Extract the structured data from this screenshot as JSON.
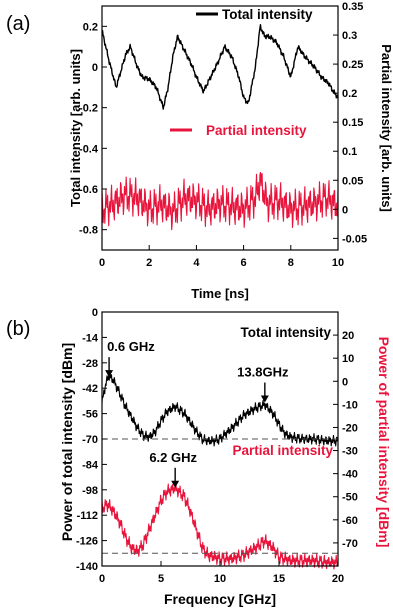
{
  "chart_data": [
    {
      "panel": "(a)",
      "type": "line",
      "xlabel": "Time [ns]",
      "ylabel": "Total intensity [arb. units]",
      "ylabel_right": "Partial intensity [arb. units]",
      "xlim": [
        0,
        10
      ],
      "ylim": [
        -0.9,
        0.3
      ],
      "ylim_right": [
        -0.07,
        0.35
      ],
      "xticks": [
        "0",
        "2",
        "4",
        "6",
        "8",
        "10"
      ],
      "yticks": [
        "0.2",
        "0",
        "-0.2",
        "-0.4",
        "-0.6",
        "-0.8"
      ],
      "yticks_right": [
        "0.35",
        "0.3",
        "0.25",
        "0.2",
        "0.15",
        "0.1",
        "0.05",
        "0",
        "-0.05"
      ],
      "legend": [
        {
          "label": "Total intensity",
          "color": "#000000",
          "placement": "top-right"
        },
        {
          "label": "Partial intensity",
          "color": "#e8143c",
          "placement": "middle-right"
        }
      ],
      "series": [
        {
          "axis": "left",
          "color": "#000000",
          "x": [
            0,
            0.3,
            0.6,
            0.8,
            1.0,
            1.2,
            1.5,
            1.7,
            2.0,
            2.3,
            2.6,
            2.8,
            3.0,
            3.2,
            3.5,
            3.8,
            4.0,
            4.3,
            4.6,
            4.9,
            5.2,
            5.5,
            5.8,
            6.0,
            6.2,
            6.5,
            6.7,
            6.9,
            7.1,
            7.4,
            7.7,
            8.0,
            8.3,
            8.6,
            9.0,
            9.3,
            9.6,
            9.8,
            10.0
          ],
          "values": [
            0.18,
            0.03,
            -0.1,
            -0.02,
            0.06,
            0.1,
            0.0,
            -0.05,
            -0.06,
            -0.1,
            -0.2,
            -0.1,
            0.05,
            0.15,
            0.08,
            0.01,
            -0.05,
            -0.12,
            -0.05,
            0.02,
            0.1,
            0.05,
            -0.05,
            -0.15,
            -0.18,
            0.0,
            0.2,
            0.15,
            0.15,
            0.12,
            0.05,
            -0.05,
            0.1,
            0.05,
            0.0,
            -0.05,
            -0.08,
            -0.12,
            -0.15
          ]
        },
        {
          "axis": "right",
          "color": "#e8143c",
          "x": [
            0,
            0.5,
            1.0,
            1.5,
            2.0,
            2.5,
            3.0,
            3.5,
            4.0,
            4.5,
            5.0,
            5.5,
            6.0,
            6.5,
            6.7,
            7.0,
            7.5,
            8.0,
            8.5,
            9.0,
            9.5,
            10.0
          ],
          "values": [
            0.0,
            0.01,
            0.025,
            0.02,
            0.0,
            0.01,
            -0.005,
            0.02,
            0.015,
            0.0,
            0.01,
            0.005,
            0.0,
            0.02,
            0.05,
            0.01,
            0.015,
            0.0,
            0.005,
            0.01,
            0.02,
            0.005
          ],
          "amplitude": 0.035
        }
      ]
    },
    {
      "panel": "(b)",
      "type": "line",
      "xlabel": "Frequency [GHz]",
      "ylabel": "Power of total intensity [dBm]",
      "ylabel_right": "Power of partial intensity [dBm]",
      "xlim": [
        0,
        20
      ],
      "ylim": [
        -140,
        0
      ],
      "ylim_right": [
        -80,
        30
      ],
      "xticks": [
        "0",
        "5",
        "10",
        "15",
        "20"
      ],
      "yticks": [
        "0",
        "-14",
        "-28",
        "-42",
        "-56",
        "-70",
        "-84",
        "-98",
        "-112",
        "-126",
        "-140"
      ],
      "yticks_right": [
        "20",
        "10",
        "0",
        "-10",
        "-20",
        "-30",
        "-40",
        "-50",
        "-60",
        "-70"
      ],
      "legend": [
        {
          "label": "Total intensity",
          "color": "#000000",
          "placement": "top-right"
        },
        {
          "label": "Partial intensity",
          "color": "#e8143c",
          "placement": "middle-right"
        }
      ],
      "annotations": [
        {
          "text": "0.6 GHz",
          "x": 0.6,
          "y": -37
        },
        {
          "text": "13.8GHz",
          "x": 13.8,
          "y": -51
        },
        {
          "text": "6.2 GHz",
          "x": 6.2,
          "y": -98
        }
      ],
      "reference_lines": [
        -70,
        -133
      ],
      "series": [
        {
          "axis": "left",
          "color": "#000000",
          "x": [
            0,
            0.3,
            0.6,
            1.0,
            1.5,
            2.0,
            2.5,
            3.0,
            3.5,
            4.0,
            4.5,
            5.0,
            5.5,
            6.2,
            7.0,
            7.5,
            8.0,
            8.5,
            9.0,
            9.5,
            10.0,
            11.0,
            12.0,
            13.0,
            13.8,
            14.5,
            15.0,
            15.5,
            16.0,
            17.0,
            18.0,
            19.0,
            20.0
          ],
          "values": [
            -50,
            -40,
            -35,
            -38,
            -45,
            -52,
            -58,
            -64,
            -68,
            -69,
            -66,
            -60,
            -55,
            -52,
            -56,
            -61,
            -66,
            -70,
            -71,
            -71,
            -70,
            -64,
            -57,
            -53,
            -51,
            -56,
            -62,
            -67,
            -69,
            -70,
            -70,
            -71,
            -71
          ],
          "amplitude": 3
        },
        {
          "axis": "left",
          "color": "#e8143c",
          "x": [
            0,
            0.5,
            1.0,
            1.5,
            2.0,
            2.5,
            3.0,
            3.5,
            4.0,
            4.5,
            5.0,
            5.5,
            6.2,
            7.0,
            7.5,
            8.0,
            8.5,
            9.0,
            10.0,
            11.0,
            12.0,
            13.0,
            13.8,
            14.5,
            15.0,
            16.0,
            17.0,
            18.0,
            19.0,
            20.0
          ],
          "values": [
            -108,
            -106,
            -110,
            -116,
            -124,
            -130,
            -132,
            -128,
            -120,
            -112,
            -104,
            -99,
            -97,
            -102,
            -110,
            -120,
            -130,
            -134,
            -136,
            -136,
            -134,
            -130,
            -126,
            -130,
            -135,
            -137,
            -137,
            -137,
            -138,
            -138
          ],
          "amplitude": 4
        }
      ]
    }
  ]
}
